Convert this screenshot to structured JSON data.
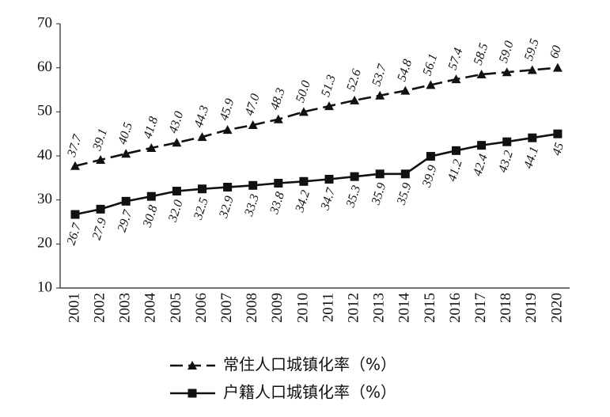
{
  "chart_data": {
    "type": "line",
    "categories": [
      "2001",
      "2002",
      "2003",
      "2004",
      "2005",
      "2006",
      "2007",
      "2008",
      "2009",
      "2010",
      "2011",
      "2012",
      "2013",
      "2014",
      "2015",
      "2016",
      "2017",
      "2018",
      "2019",
      "2020"
    ],
    "series": [
      {
        "name": "常住人口城镇化率（%）",
        "color": "#111111",
        "dashed": true,
        "marker": "triangle",
        "label_side": "above",
        "values": [
          37.7,
          39.1,
          40.5,
          41.8,
          43.0,
          44.3,
          45.9,
          47.0,
          48.3,
          50.0,
          51.3,
          52.6,
          53.7,
          54.8,
          56.1,
          57.4,
          58.5,
          59.0,
          59.5,
          60
        ],
        "value_labels": [
          "37.7",
          "39.1",
          "40.5",
          "41.8",
          "43.0",
          "44.3",
          "45.9",
          "47.0",
          "48.3",
          "50.0",
          "51.3",
          "52.6",
          "53.7",
          "54.8",
          "56.1",
          "57.4",
          "58.5",
          "59.0",
          "59.5",
          "60"
        ]
      },
      {
        "name": "户籍人口城镇化率（%）",
        "color": "#111111",
        "dashed": false,
        "marker": "square",
        "label_side": "below",
        "values": [
          26.7,
          27.9,
          29.7,
          30.8,
          32.0,
          32.5,
          32.9,
          33.3,
          33.8,
          34.2,
          34.7,
          35.3,
          35.9,
          35.9,
          39.9,
          41.2,
          42.4,
          43.2,
          44.1,
          45
        ],
        "value_labels": [
          "26.7",
          "27.9",
          "29.7",
          "30.8",
          "32.0",
          "32.5",
          "32.9",
          "33.3",
          "33.8",
          "34.2",
          "34.7",
          "35.3",
          "35.9",
          "35.9",
          "39.9",
          "41.2",
          "42.4",
          "43.2",
          "44.1",
          "45"
        ]
      }
    ],
    "ylim": [
      10,
      70
    ],
    "yticks": [
      10,
      20,
      30,
      40,
      50,
      60,
      70
    ]
  }
}
